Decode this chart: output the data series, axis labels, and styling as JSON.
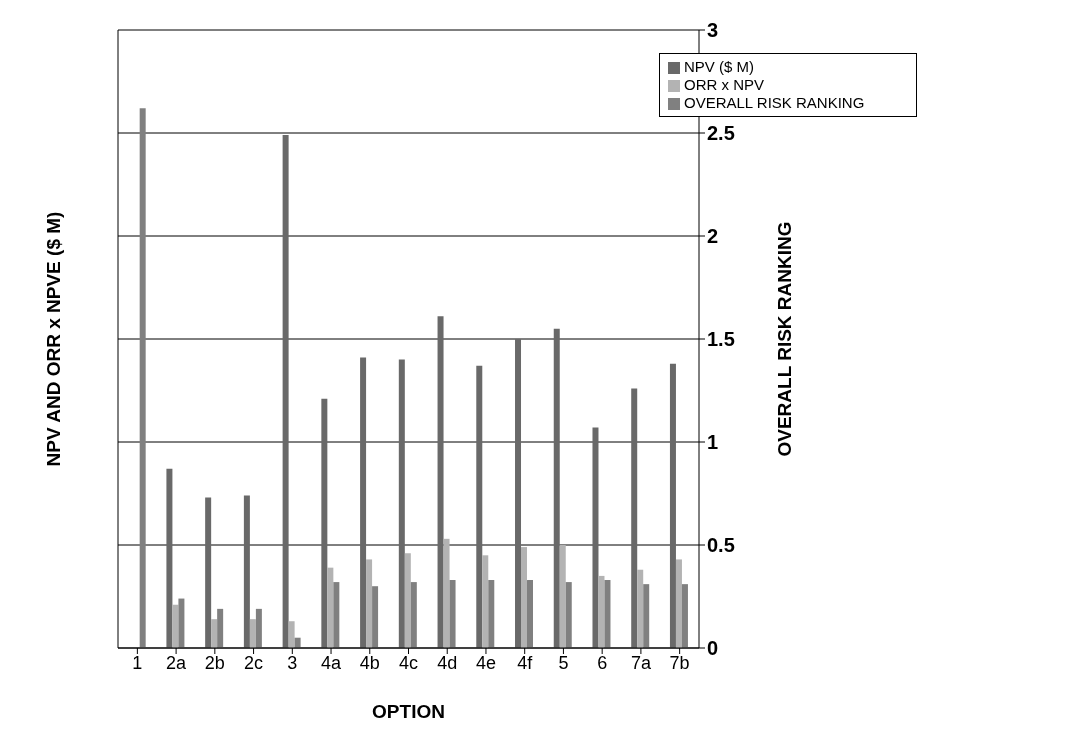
{
  "chart_data": {
    "type": "bar",
    "xlabel": "OPTION",
    "ylabel": "NPV AND ORR x NPVE ($ M)",
    "y2label": "OVERALL RISK RANKING",
    "categories": [
      "1",
      "2a",
      "2b",
      "2c",
      "3",
      "4a",
      "4b",
      "4c",
      "4d",
      "4e",
      "4f",
      "5",
      "6",
      "7a",
      "7b"
    ],
    "series": [
      {
        "name": "NPV ($ M)",
        "color": "#696969",
        "axis": "y2",
        "values": [
          null,
          0.87,
          0.73,
          0.74,
          2.49,
          1.21,
          1.41,
          1.4,
          1.61,
          1.37,
          1.5,
          1.55,
          1.07,
          1.26,
          1.38
        ]
      },
      {
        "name": "ORR x NPV",
        "color": "#b3b3b3",
        "axis": "y2",
        "values": [
          null,
          0.21,
          0.14,
          0.14,
          0.13,
          0.39,
          0.43,
          0.46,
          0.53,
          0.45,
          0.49,
          0.5,
          0.35,
          0.38,
          0.43
        ]
      },
      {
        "name": "OVERALL RISK RANKING",
        "color": "#808080",
        "axis": "y2",
        "values": [
          2.62,
          0.24,
          0.19,
          0.19,
          0.05,
          0.32,
          0.3,
          0.32,
          0.33,
          0.33,
          0.33,
          0.32,
          0.33,
          0.31,
          0.31
        ]
      }
    ],
    "y2lim": [
      0,
      3
    ],
    "y2ticks": [
      0,
      0.5,
      1,
      1.5,
      2,
      2.5,
      3
    ],
    "grid": "y",
    "legend": "top right"
  }
}
